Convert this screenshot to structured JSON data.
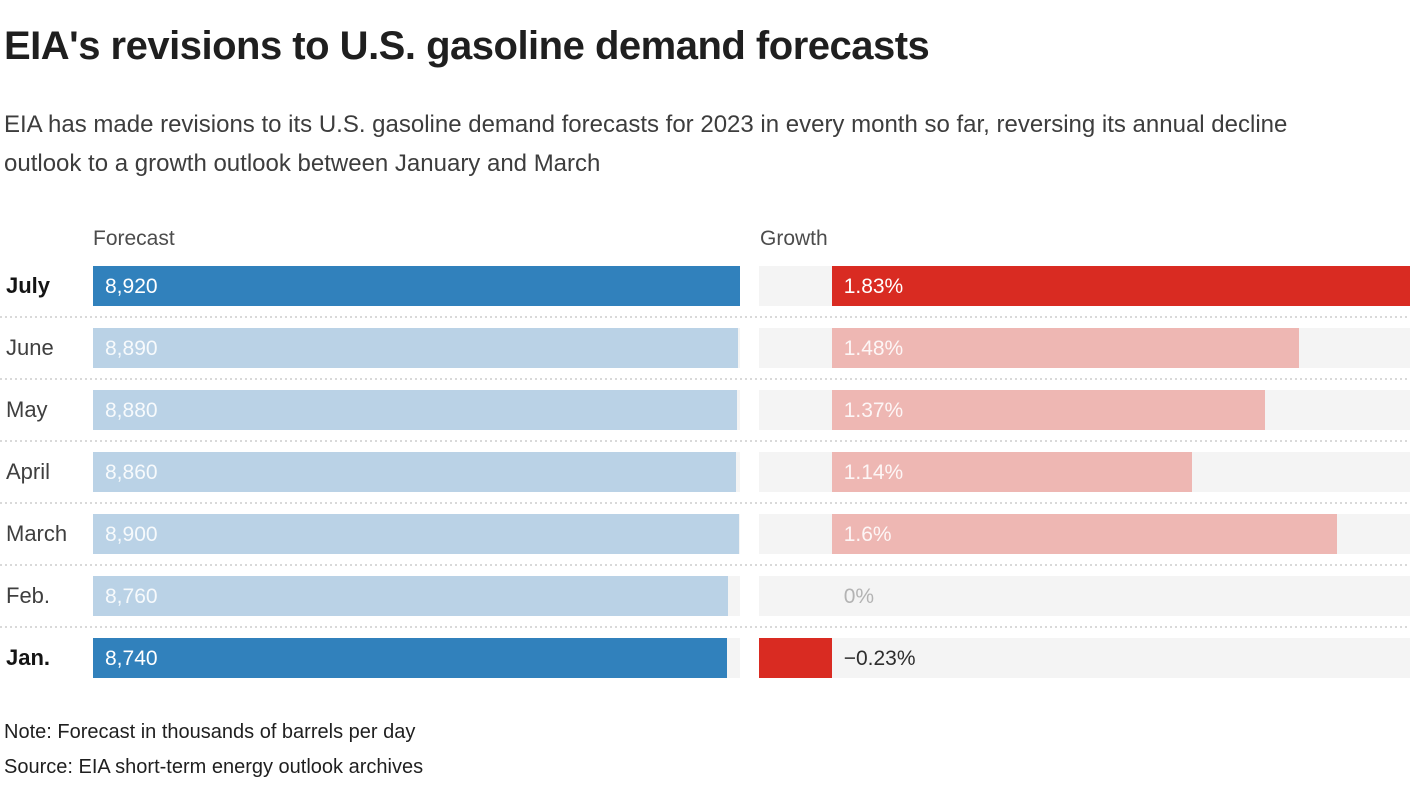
{
  "title": "EIA's revisions to U.S. gasoline demand forecasts",
  "subtitle": "EIA has made revisions to its U.S. gasoline demand forecasts for 2023 in every month so far, reversing its annual decline outlook to a growth outlook between January and March",
  "note": "Note: Forecast in thousands of barrels per day",
  "source": "Source: EIA short-term energy outlook archives",
  "chart_data": {
    "type": "bar",
    "orientation": "horizontal",
    "categories": [
      "July",
      "June",
      "May",
      "April",
      "March",
      "Feb.",
      "Jan."
    ],
    "emphasized_categories": [
      "July",
      "Jan."
    ],
    "series": [
      {
        "name": "Forecast",
        "unit": "thousand barrels per day",
        "axis": [
          0,
          8920
        ],
        "values": [
          8920,
          8890,
          8880,
          8860,
          8900,
          8760,
          8740
        ],
        "labels": [
          "8,920",
          "8,890",
          "8,880",
          "8,860",
          "8,900",
          "8,760",
          "8,740"
        ]
      },
      {
        "name": "Growth",
        "unit": "%",
        "axis": [
          -0.23,
          1.83
        ],
        "values": [
          1.83,
          1.48,
          1.37,
          1.14,
          1.6,
          0,
          -0.23
        ],
        "labels": [
          "1.83%",
          "1.48%",
          "1.37%",
          "1.14%",
          "1.6%",
          "0%",
          "−0.23%"
        ]
      }
    ],
    "legend": "none",
    "grid": "dotted row separators",
    "colors": {
      "forecast_bar": "#3181bc",
      "forecast_bar_muted": "#bad2e6",
      "growth_bar": "#d92b22",
      "growth_bar_muted": "#eeb7b3",
      "track": "#f4f4f4",
      "separator": "#d9d9d9",
      "label_on_bar": "#ffffff",
      "label_on_muted_bar": "rgba(255,255,255,0.88)",
      "label_zero": "#b3b3b3",
      "label_negative": "#2e2e2e"
    }
  }
}
